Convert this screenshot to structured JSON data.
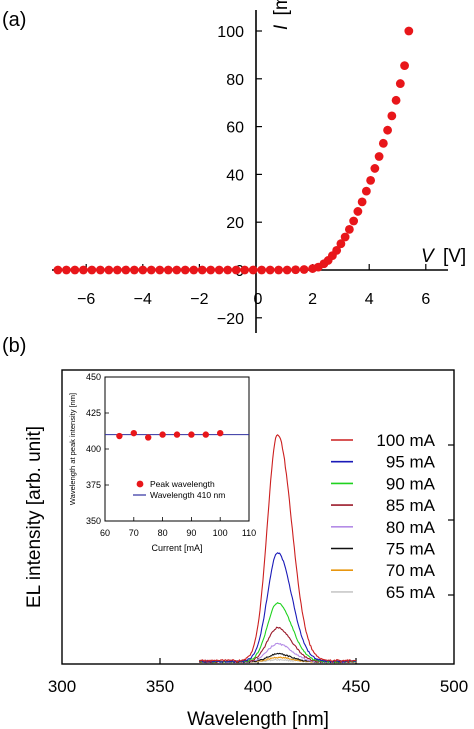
{
  "panel_a_label": "(a)",
  "panel_b_label": "(b)",
  "chart_data": [
    {
      "panel": "(a)",
      "type": "scatter",
      "xlabel": "V",
      "xunit": "[V]",
      "ylabel": "I",
      "yunit": "[mA]",
      "xlim": [
        -7.2,
        7.0
      ],
      "ylim": [
        -24,
        106
      ],
      "xticks": [
        -6,
        -4,
        -2,
        0,
        2,
        4,
        6
      ],
      "yticks": [
        -20,
        0,
        20,
        40,
        60,
        80,
        100
      ],
      "xtick_labels": [
        "−6",
        "−4",
        "−2",
        "0",
        "2",
        "4",
        "6"
      ],
      "ytick_labels": [
        "−20",
        "0",
        "20",
        "40",
        "60",
        "80",
        "100"
      ],
      "marker_color": "#e8161a",
      "x": [
        -7.0,
        -6.7,
        -6.4,
        -6.1,
        -5.8,
        -5.5,
        -5.2,
        -4.9,
        -4.6,
        -4.3,
        -4.0,
        -3.7,
        -3.4,
        -3.1,
        -2.8,
        -2.5,
        -2.2,
        -1.9,
        -1.6,
        -1.3,
        -1.0,
        -0.7,
        -0.4,
        -0.1,
        0.2,
        0.5,
        0.8,
        1.1,
        1.4,
        1.7,
        2.0,
        2.2,
        2.4,
        2.55,
        2.7,
        2.85,
        3.0,
        3.15,
        3.3,
        3.45,
        3.6,
        3.75,
        3.9,
        4.05,
        4.2,
        4.35,
        4.5,
        4.65,
        4.8,
        4.95,
        5.1,
        5.25,
        5.4
      ],
      "y": [
        0,
        0,
        0,
        0,
        0,
        0,
        0,
        0,
        0,
        0,
        0,
        0,
        0,
        0,
        0,
        0,
        0,
        0,
        0,
        0,
        0,
        0,
        0,
        0,
        0,
        0,
        0,
        0,
        0.1,
        0.2,
        0.6,
        1.2,
        2.6,
        4.0,
        6.0,
        8.2,
        11.0,
        13.8,
        17.0,
        20.5,
        24.5,
        28.5,
        33.0,
        37.5,
        42.5,
        47.5,
        53.0,
        58.5,
        64.5,
        71.0,
        78.0,
        85.5,
        100.0
      ]
    },
    {
      "panel": "(b)",
      "type": "line",
      "xlabel": "Wavelength [nm]",
      "ylabel": "EL intensity [arb. unit]",
      "xlim": [
        300,
        500
      ],
      "xticks": [
        300,
        350,
        400,
        450,
        500
      ],
      "xtick_labels": [
        "300",
        "350",
        "400",
        "450",
        "500"
      ],
      "x_range_measured": [
        370,
        450
      ],
      "peak_x": 410,
      "series": [
        {
          "name": "100 mA",
          "color": "#cc1f1f",
          "peak": 1.0
        },
        {
          "name": "95 mA",
          "color": "#1a1ab8",
          "peak": 0.48
        },
        {
          "name": "90 mA",
          "color": "#1fd21f",
          "peak": 0.26
        },
        {
          "name": "85 mA",
          "color": "#9b1b2b",
          "peak": 0.15
        },
        {
          "name": "80 mA",
          "color": "#b48ce6",
          "peak": 0.08
        },
        {
          "name": "75 mA",
          "color": "#111111",
          "peak": 0.035
        },
        {
          "name": "70 mA",
          "color": "#e8960f",
          "peak": 0.02
        },
        {
          "name": "65 mA",
          "color": "#c8c8c8",
          "peak": 0.01
        }
      ]
    },
    {
      "panel": "(b) inset",
      "type": "scatter",
      "xlabel": "Current [mA]",
      "ylabel": "Wavelength at peak intensity [nm]",
      "xlim": [
        60,
        110
      ],
      "ylim": [
        350,
        450
      ],
      "xticks": [
        60,
        70,
        80,
        90,
        100,
        110
      ],
      "yticks": [
        350,
        375,
        400,
        425,
        450
      ],
      "xtick_labels": [
        "60",
        "70",
        "80",
        "90",
        "100",
        "110"
      ],
      "ytick_labels": [
        "350",
        "375",
        "400",
        "425",
        "450"
      ],
      "series": [
        {
          "name": "Peak wavelength",
          "color": "#e8161a",
          "x": [
            65,
            70,
            75,
            80,
            85,
            90,
            95,
            100
          ],
          "y": [
            409,
            411,
            408,
            410,
            410,
            410,
            410,
            411
          ]
        },
        {
          "name": "Wavelength 410 nm",
          "color": "#3030a0",
          "value": 410
        }
      ]
    }
  ]
}
